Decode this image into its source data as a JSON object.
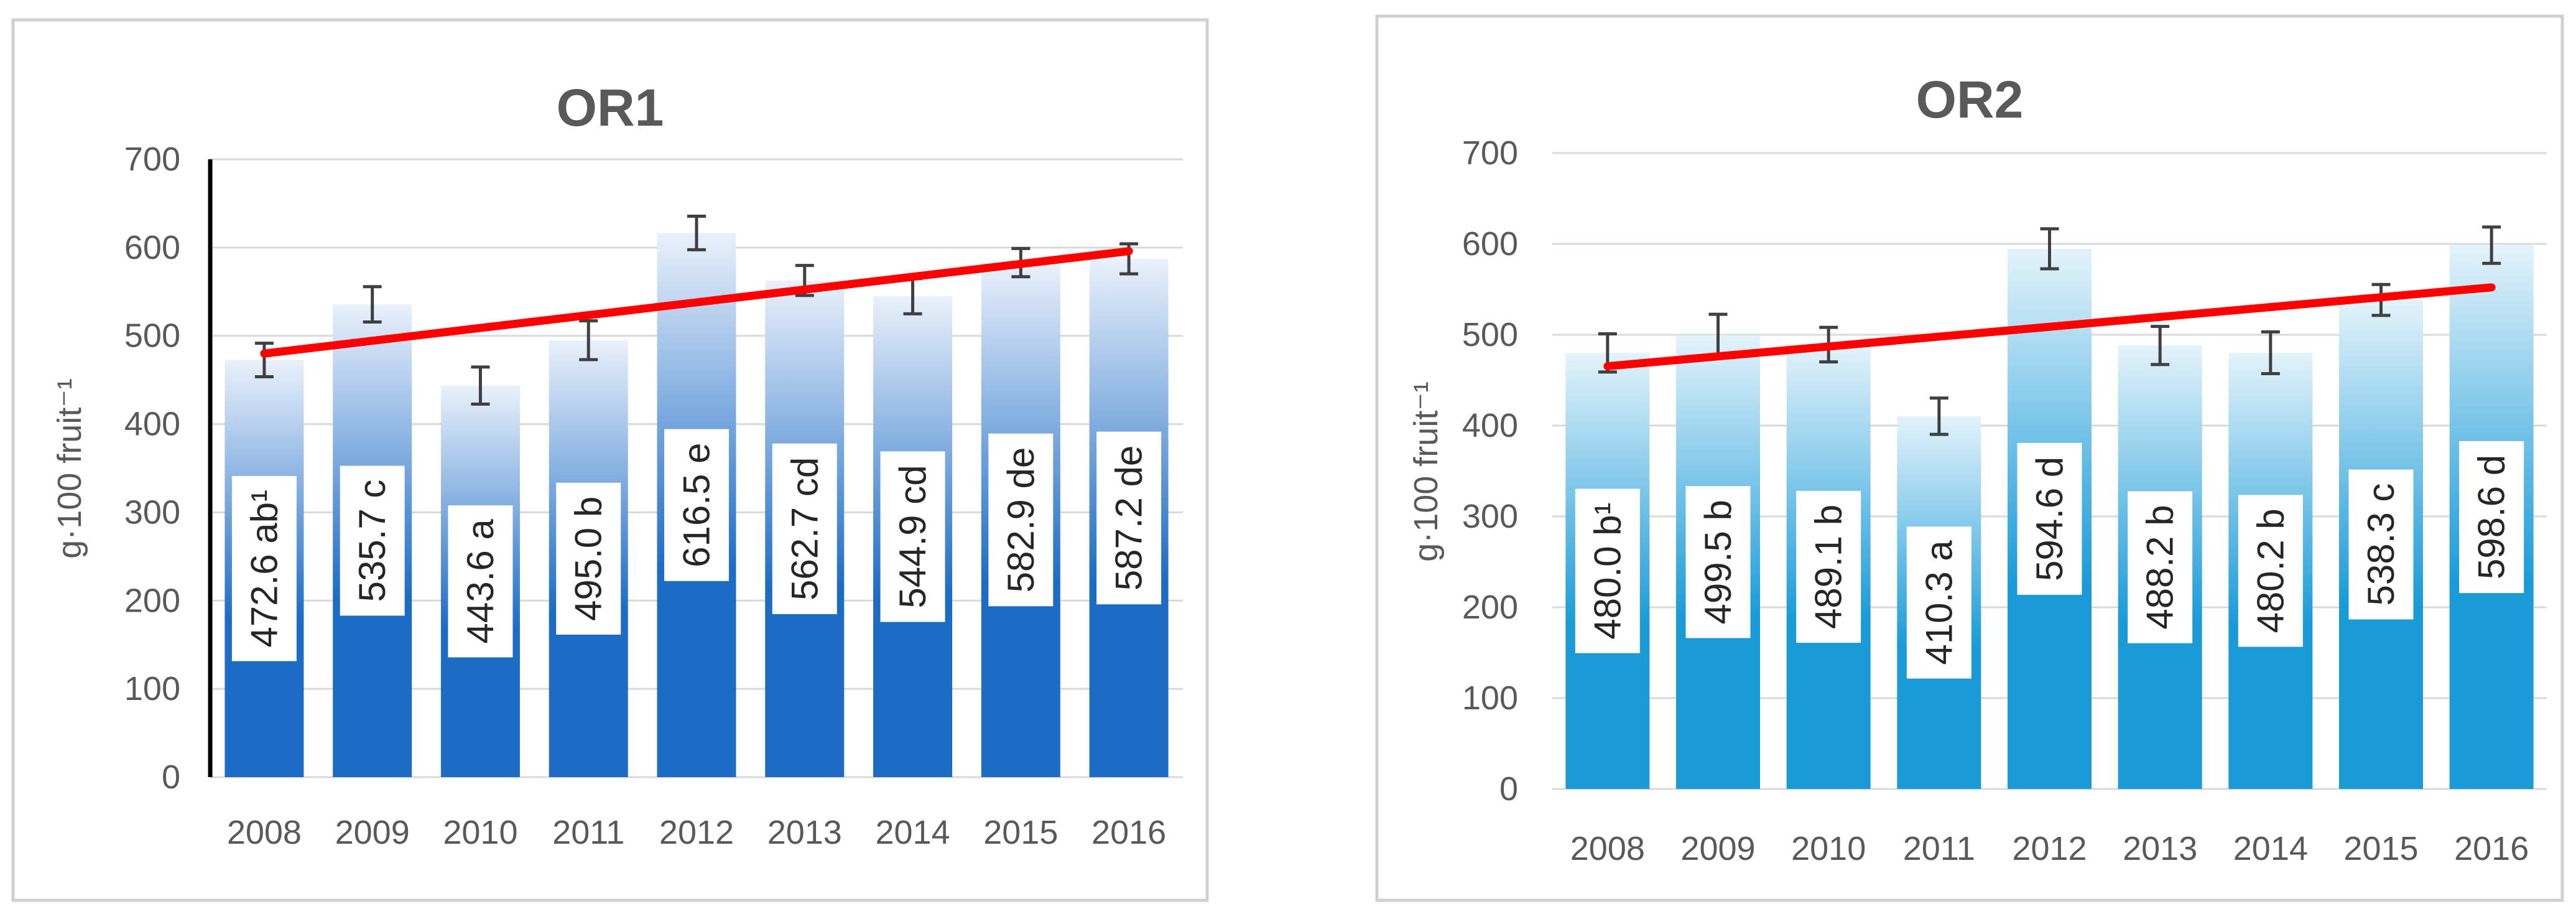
{
  "chart_data": [
    {
      "type": "bar",
      "title": "OR1",
      "xlabel": "",
      "ylabel": "g·100 fruit⁻¹",
      "categories": [
        "2008",
        "2009",
        "2010",
        "2011",
        "2012",
        "2013",
        "2014",
        "2015",
        "2016"
      ],
      "values": [
        472.6,
        535.7,
        443.6,
        495.0,
        616.5,
        562.7,
        544.9,
        582.9,
        587.2
      ],
      "errors": [
        19,
        20,
        21,
        22,
        19,
        17,
        20,
        16,
        17
      ],
      "data_labels": [
        "472.6 ab¹",
        "535.7 c",
        "443.6 a",
        "495.0 b",
        "616.5 e",
        "562.7 cd",
        "544.9 cd",
        "582.9 de",
        "587.2 de"
      ],
      "ylim": [
        0,
        700
      ],
      "yticks": [
        0,
        100,
        200,
        300,
        400,
        500,
        600,
        700
      ],
      "grid": true,
      "trendline": true,
      "bar_color": "#1c6cc6",
      "bar_fade_color": "#eaf1fb",
      "trend_color": "#ff0000",
      "error_bar_color": "#404040"
    },
    {
      "type": "bar",
      "title": "OR2",
      "xlabel": "",
      "ylabel": "g·100 fruit⁻¹",
      "categories": [
        "2008",
        "2009",
        "2010",
        "2011",
        "2012",
        "2013",
        "2014",
        "2015",
        "2016"
      ],
      "values": [
        480.0,
        499.5,
        489.1,
        410.3,
        594.6,
        488.2,
        480.2,
        538.3,
        598.6
      ],
      "errors": [
        21,
        23,
        19,
        20,
        22,
        21,
        23,
        17,
        20
      ],
      "data_labels": [
        "480.0 b¹",
        "499.5 b",
        "489.1 b",
        "410.3 a",
        "594.6 d",
        "488.2 b",
        "480.2 b",
        "538.3 c",
        "598.6 d"
      ],
      "ylim": [
        0,
        700
      ],
      "yticks": [
        0,
        100,
        200,
        300,
        400,
        500,
        600,
        700
      ],
      "grid": true,
      "trendline": true,
      "bar_color": "#1a9bd8",
      "bar_fade_color": "#e4f3fb",
      "trend_color": "#ff0000",
      "error_bar_color": "#404040"
    }
  ]
}
